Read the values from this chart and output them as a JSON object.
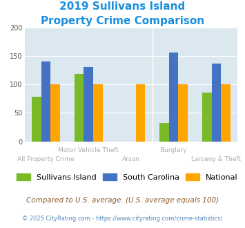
{
  "title_line1": "2019 Sullivans Island",
  "title_line2": "Property Crime Comparison",
  "categories": [
    "All Property Crime",
    "Motor Vehicle Theft",
    "Arson",
    "Burglary",
    "Larceny & Theft"
  ],
  "sullivans_island": [
    78,
    118,
    null,
    32,
    85
  ],
  "south_carolina": [
    140,
    131,
    null,
    156,
    136
  ],
  "national": [
    100,
    100,
    100,
    100,
    100
  ],
  "color_sullivans": "#7aba28",
  "color_sc": "#4472c4",
  "color_national": "#ffa500",
  "ylim": [
    0,
    200
  ],
  "yticks": [
    0,
    50,
    100,
    150,
    200
  ],
  "footer_text1": "Compared to U.S. average. (U.S. average equals 100)",
  "footer_text2": "© 2025 CityRating.com - https://www.cityrating.com/crime-statistics/",
  "bg_color": "#dce8f0",
  "title_color": "#1a8fdd",
  "footer1_color": "#8b5a2b",
  "footer2_color": "#5588bb",
  "upper_xtick_labels": {
    "1": "Motor Vehicle Theft",
    "3": "Burglary"
  },
  "lower_xtick_labels": {
    "0": "All Property Crime",
    "2": "Arson",
    "4": "Larceny & Theft"
  }
}
